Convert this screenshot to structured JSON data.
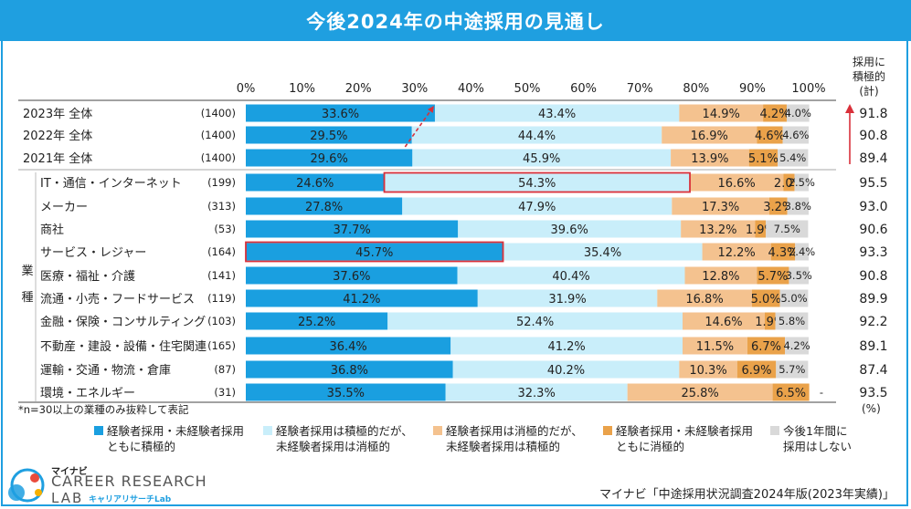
{
  "title": "今後2024年の中途採用の見通し",
  "column_header": [
    "採用に",
    "積極的",
    "(計)"
  ],
  "note": "*n=30以上の業種のみ抜粋して表記",
  "unit": "(%)",
  "industry_group_label": [
    "業",
    "種"
  ],
  "legend": [
    {
      "line1": "経験者採用・未経験者採用",
      "line2": "ともに積極的",
      "color": "#1a9fe0"
    },
    {
      "line1": "経験者採用は積極的だが、",
      "line2": "未経験者採用は消極的",
      "color": "#c9eefa"
    },
    {
      "line1": "経験者採用は消極的だが、",
      "line2": "未経験者採用は積極的",
      "color": "#f4c28f"
    },
    {
      "line1": "経験者採用・未経験者採用",
      "line2": "ともに消極的",
      "color": "#eaa24a"
    },
    {
      "line1": "今後1年間に",
      "line2": "採用はしない",
      "color": "#d9d9d9"
    }
  ],
  "brand": {
    "small": "マイナビ",
    "main": "CAREER RESEARCH",
    "sub": "LAB",
    "kana": "キャリアリサーチLab"
  },
  "source": "マイナビ「中途採用状況調査2024年版(2023年実績)」",
  "chart_data": {
    "type": "bar",
    "orientation": "horizontal",
    "stacked": true,
    "title": "今後2024年の中途採用の見通し",
    "xlim": [
      0,
      100
    ],
    "x_ticks": [
      "0%",
      "10%",
      "20%",
      "30%",
      "40%",
      "50%",
      "60%",
      "70%",
      "80%",
      "90%",
      "100%"
    ],
    "series_names": [
      "経験者採用・未経験者採用ともに積極的",
      "経験者採用は積極的だが、未経験者採用は消極的",
      "経験者採用は消極的だが、未経験者採用は積極的",
      "経験者採用・未経験者採用ともに消極的",
      "今後1年間に採用はしない"
    ],
    "colors": [
      "#1a9fe0",
      "#c9eefa",
      "#f4c28f",
      "#eaa24a",
      "#d9d9d9"
    ],
    "rows": [
      {
        "label": "2023年 全体",
        "n": "(1400)",
        "values": [
          33.6,
          43.4,
          14.9,
          4.2,
          4.0
        ],
        "labels": [
          "33.6%",
          "43.4%",
          "14.9%",
          "4.2%",
          "4.0%"
        ],
        "total": "91.8"
      },
      {
        "label": "2022年 全体",
        "n": "(1400)",
        "values": [
          29.5,
          44.4,
          16.9,
          4.6,
          4.6
        ],
        "labels": [
          "29.5%",
          "44.4%",
          "16.9%",
          "4.6%",
          "4.6%"
        ],
        "total": "90.8"
      },
      {
        "label": "2021年 全体",
        "n": "(1400)",
        "values": [
          29.6,
          45.9,
          13.9,
          5.1,
          5.4
        ],
        "labels": [
          "29.6%",
          "45.9%",
          "13.9%",
          "5.1%",
          "5.4%"
        ],
        "total": "89.4"
      },
      {
        "label": "IT・通信・インターネット",
        "n": "(199)",
        "values": [
          24.6,
          54.3,
          16.6,
          2.0,
          2.5
        ],
        "labels": [
          "24.6%",
          "54.3%",
          "16.6%",
          "2.0%",
          "2.5%"
        ],
        "total": "95.5"
      },
      {
        "label": "メーカー",
        "n": "(313)",
        "values": [
          27.8,
          47.9,
          17.3,
          3.2,
          3.8
        ],
        "labels": [
          "27.8%",
          "47.9%",
          "17.3%",
          "3.2%",
          "3.8%"
        ],
        "total": "93.0"
      },
      {
        "label": "商社",
        "n": "(53)",
        "values": [
          37.7,
          39.6,
          13.2,
          1.9,
          7.5
        ],
        "labels": [
          "37.7%",
          "39.6%",
          "13.2%",
          "1.9%",
          "7.5%"
        ],
        "total": "90.6"
      },
      {
        "label": "サービス・レジャー",
        "n": "(164)",
        "values": [
          45.7,
          35.4,
          12.2,
          4.3,
          2.4
        ],
        "labels": [
          "45.7%",
          "35.4%",
          "12.2%",
          "4.3%",
          "2.4%"
        ],
        "total": "93.3"
      },
      {
        "label": "医療・福祉・介護",
        "n": "(141)",
        "values": [
          37.6,
          40.4,
          12.8,
          5.7,
          3.5
        ],
        "labels": [
          "37.6%",
          "40.4%",
          "12.8%",
          "5.7%",
          "3.5%"
        ],
        "total": "90.8"
      },
      {
        "label": "流通・小売・フードサービス",
        "n": "(119)",
        "values": [
          41.2,
          31.9,
          16.8,
          5.0,
          5.0
        ],
        "labels": [
          "41.2%",
          "31.9%",
          "16.8%",
          "5.0%",
          "5.0%"
        ],
        "total": "89.9"
      },
      {
        "label": "金融・保険・コンサルティング",
        "n": "(103)",
        "values": [
          25.2,
          52.4,
          14.6,
          1.9,
          5.8
        ],
        "labels": [
          "25.2%",
          "52.4%",
          "14.6%",
          "1.9%",
          "5.8%"
        ],
        "total": "92.2"
      },
      {
        "label": "不動産・建設・設備・住宅関連",
        "n": "(165)",
        "values": [
          36.4,
          41.2,
          11.5,
          6.7,
          4.2
        ],
        "labels": [
          "36.4%",
          "41.2%",
          "11.5%",
          "6.7%",
          "4.2%"
        ],
        "total": "89.1"
      },
      {
        "label": "運輸・交通・物流・倉庫",
        "n": "(87)",
        "values": [
          36.8,
          40.2,
          10.3,
          6.9,
          5.7
        ],
        "labels": [
          "36.8%",
          "40.2%",
          "10.3%",
          "6.9%",
          "5.7%"
        ],
        "total": "87.4"
      },
      {
        "label": "環境・エネルギー",
        "n": "(31)",
        "values": [
          35.5,
          32.3,
          25.8,
          6.5,
          0
        ],
        "labels": [
          "35.5%",
          "32.3%",
          "25.8%",
          "6.5%",
          "-"
        ],
        "total": "93.5"
      }
    ],
    "highlights": [
      {
        "row": 3,
        "segment": 1
      },
      {
        "row": 6,
        "segment": 0
      }
    ]
  }
}
